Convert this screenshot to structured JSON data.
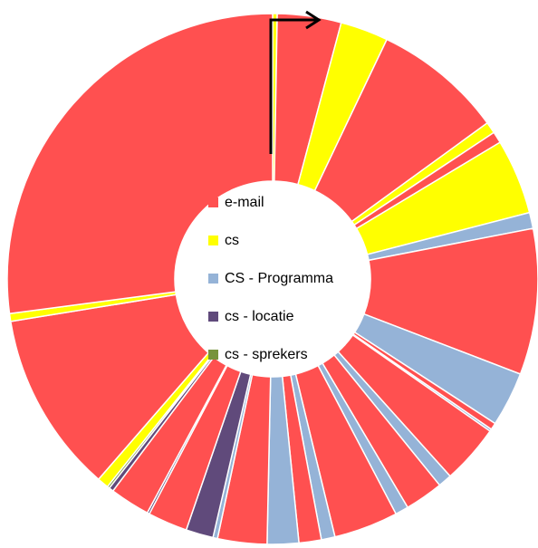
{
  "chart_data": {
    "type": "donut",
    "series": [
      {
        "name": "e-mail",
        "color": "#ff5050"
      },
      {
        "name": "cs",
        "color": "#ffff00"
      },
      {
        "name": "CS - Programma",
        "color": "#95b3d7"
      },
      {
        "name": "cs - locatie",
        "color": "#604a7b"
      },
      {
        "name": "cs - sprekers",
        "color": "#77933c"
      }
    ],
    "values": [
      1,
      14,
      10.5,
      28.5,
      2.5,
      2.5,
      16.5,
      3.5,
      32,
      12,
      1.5,
      0.5,
      13,
      3,
      8.4,
      2.9,
      14.1,
      3,
      4.9,
      6.9,
      10.8,
      1,
      6,
      8.7,
      0.5,
      8.8,
      1,
      0.5,
      2.5,
      39.8,
      1.7,
      97.5
    ],
    "colors": [
      "#ffff00",
      "#ff5050",
      "#ffff00",
      "#ff5050",
      "#ffff00",
      "#ff5050",
      "#ffff00",
      "#95b3d7",
      "#ff5050",
      "#95b3d7",
      "#ff5050",
      "#95b3d7",
      "#ff5050",
      "#95b3d7",
      "#ff5050",
      "#95b3d7",
      "#ff5050",
      "#95b3d7",
      "#ff5050",
      "#95b3d7",
      "#ff5050",
      "#95b3d7",
      "#604a7b",
      "#ff5050",
      "#604a7b",
      "#ff5050",
      "#604a7b",
      "#77933c",
      "#ffff00",
      "#ff5050",
      "#ffff00",
      "#ff5050"
    ]
  }
}
